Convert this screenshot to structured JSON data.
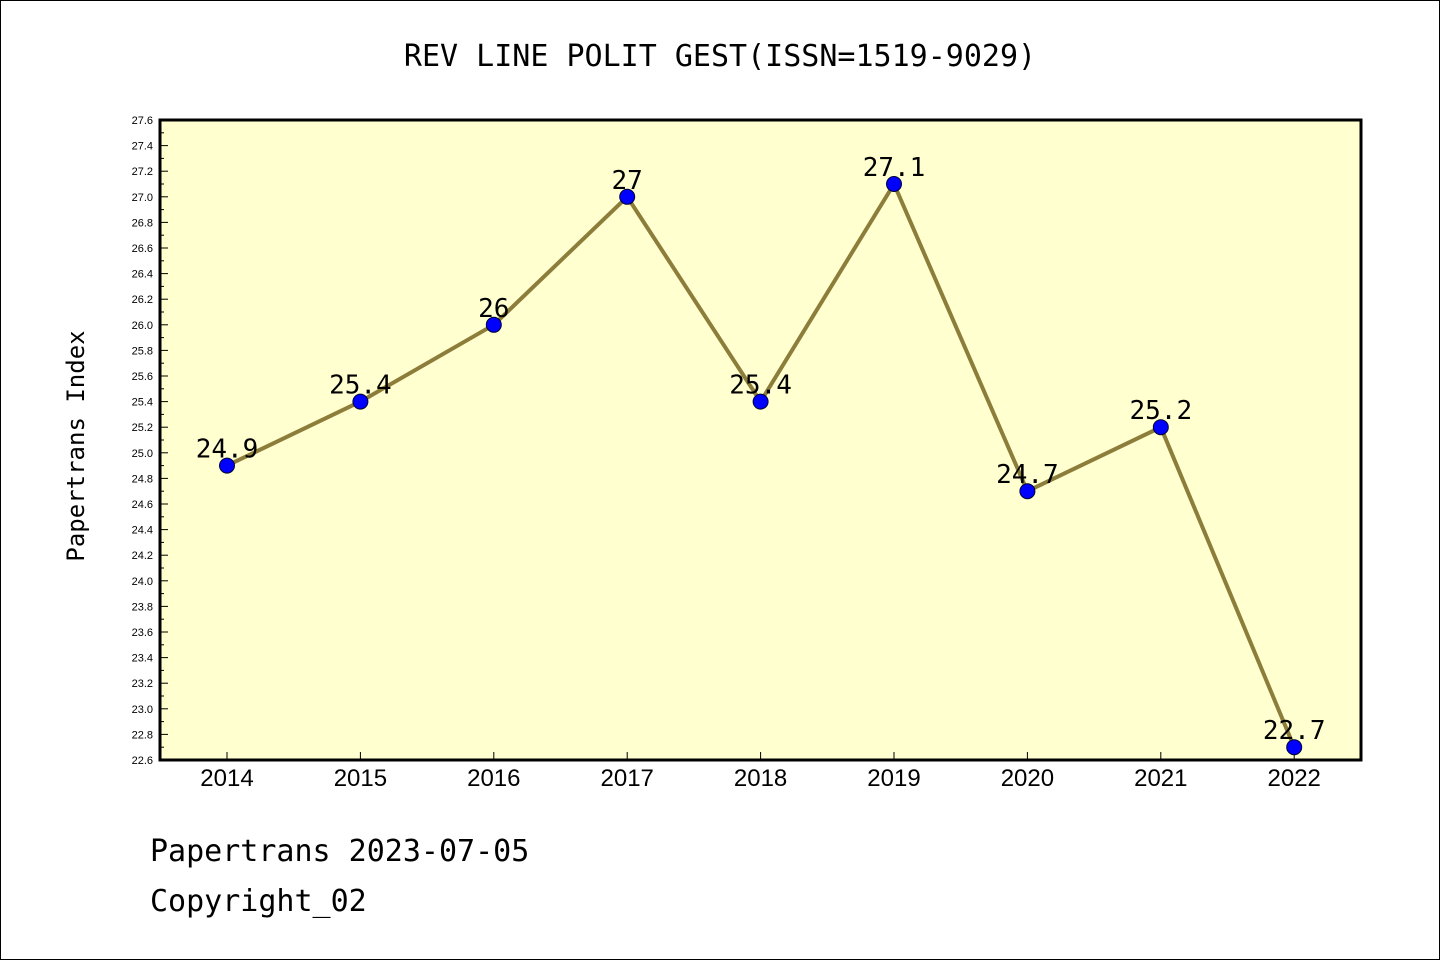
{
  "chart_data": {
    "type": "line",
    "title": "REV LINE POLIT GEST(ISSN=1519-9029)",
    "xlabel": "",
    "ylabel": "Papertrans Index",
    "categories": [
      "2014",
      "2015",
      "2016",
      "2017",
      "2018",
      "2019",
      "2020",
      "2021",
      "2022"
    ],
    "values": [
      24.9,
      25.4,
      26,
      27,
      25.4,
      27.1,
      24.7,
      25.2,
      22.7
    ],
    "data_labels": [
      "24.9",
      "25.4",
      "26",
      "27",
      "25.4",
      "27.1",
      "24.7",
      "25.2",
      "22.7"
    ],
    "ylim": [
      22.6,
      27.6
    ],
    "yticks": [
      "22.6",
      "22.8",
      "23.0",
      "23.2",
      "23.4",
      "23.6",
      "23.8",
      "24.0",
      "24.2",
      "24.4",
      "24.6",
      "24.8",
      "25.0",
      "25.2",
      "25.4",
      "25.6",
      "25.8",
      "26.0",
      "26.2",
      "26.4",
      "26.6",
      "26.8",
      "27.0",
      "27.2",
      "27.4",
      "27.6"
    ],
    "grid": false,
    "colors": {
      "plot_bg": "#ffffd0",
      "line": "#8c7d3a",
      "marker": "#0000ff"
    }
  },
  "footer": {
    "line1": "Papertrans 2023-07-05",
    "line2": "Copyright_02"
  }
}
